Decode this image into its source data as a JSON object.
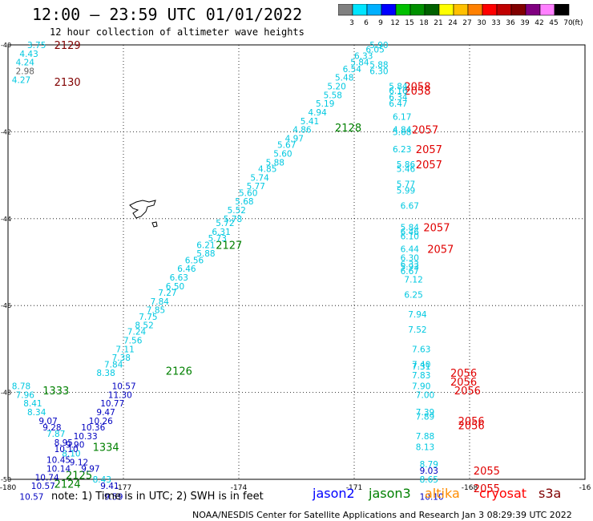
{
  "title": "12:00 — 23:59 UTC 01/01/2022",
  "subtitle": "12 hour collection of altimeter wave heights",
  "colorbar": {
    "unit": "(ft)",
    "ticks": [
      "3",
      "6",
      "9",
      "12",
      "15",
      "18",
      "21",
      "24",
      "27",
      "30",
      "33",
      "36",
      "39",
      "42",
      "45",
      "70"
    ],
    "colors": [
      "#808080",
      "#00e5ff",
      "#00b0ff",
      "#0000ff",
      "#00c000",
      "#009000",
      "#006000",
      "#ffff00",
      "#ffc000",
      "#ff8000",
      "#ff0000",
      "#c00000",
      "#800000",
      "#800080",
      "#ff80ff",
      "#000000"
    ]
  },
  "axes": {
    "x_labels": [
      "-180",
      "-177",
      "-174",
      "-171",
      "-168",
      "-16"
    ],
    "y_labels": [
      "-40",
      "-42",
      "-44",
      "-46",
      "-48",
      "-50"
    ]
  },
  "note": "note: 1) Time is in UTC; 2) SWH is in feet",
  "legend": [
    {
      "name": "jason2",
      "color": "#0000ff"
    },
    {
      "name": "jason3",
      "color": "#008000"
    },
    {
      "name": "altika",
      "color": "#ff8c00"
    },
    {
      "name": "cryosat",
      "color": "#ff0000"
    },
    {
      "name": "s3a",
      "color": "#800000"
    }
  ],
  "footer": "NOAA/NESDIS Center for Satellite Applications and Research   Jan  3 08:29:39 UTC 2022",
  "colors": {
    "cyan": "#00c8e0",
    "blue": "#0000c0",
    "green": "#008000",
    "red": "#e00000",
    "maroon": "#800000",
    "grey": "#606060"
  },
  "chart_data": {
    "type": "table",
    "tracks": [
      {
        "color": "maroon",
        "time_labels": [
          {
            "text": "2129",
            "x": -178.8,
            "y": -40.0
          },
          {
            "text": "2130",
            "x": -178.8,
            "y": -40.85
          }
        ]
      },
      {
        "color": "red",
        "time_labels": [
          {
            "text": "2058",
            "x": -169.7,
            "y": -40.95
          },
          {
            "text": "2058",
            "x": -169.7,
            "y": -41.05
          },
          {
            "text": "2057",
            "x": -169.5,
            "y": -41.95
          },
          {
            "text": "2057",
            "x": -169.4,
            "y": -42.4
          },
          {
            "text": "2057",
            "x": -169.4,
            "y": -42.75
          },
          {
            "text": "2057",
            "x": -169.2,
            "y": -44.2
          },
          {
            "text": "2057",
            "x": -169.1,
            "y": -44.7
          },
          {
            "text": "2056",
            "x": -168.5,
            "y": -47.55
          },
          {
            "text": "2056",
            "x": -168.5,
            "y": -47.75
          },
          {
            "text": "2056",
            "x": -168.4,
            "y": -47.95
          },
          {
            "text": "2056",
            "x": -168.3,
            "y": -48.65
          },
          {
            "text": "2056",
            "x": -168.3,
            "y": -48.75
          },
          {
            "text": "2055",
            "x": -167.9,
            "y": -49.8
          },
          {
            "text": "2055",
            "x": -167.9,
            "y": -50.2
          }
        ]
      },
      {
        "color": "green",
        "time_labels": [
          {
            "text": "2128",
            "x": -171.5,
            "y": -41.9
          },
          {
            "text": "2127",
            "x": -174.6,
            "y": -44.6
          },
          {
            "text": "2126",
            "x": -175.9,
            "y": -47.5
          },
          {
            "text": "1333",
            "x": -179.1,
            "y": -47.95
          },
          {
            "text": "1334",
            "x": -177.8,
            "y": -49.25
          },
          {
            "text": "2125",
            "x": -178.5,
            "y": -49.9
          },
          {
            "text": "2124",
            "x": -178.8,
            "y": -50.1
          }
        ]
      },
      {
        "color": "cyan",
        "values": [
          {
            "v": "3.75",
            "x": -179.5,
            "y": -40.0
          },
          {
            "v": "4.43",
            "x": -179.7,
            "y": -40.2
          },
          {
            "v": "4.24",
            "x": -179.8,
            "y": -40.4
          },
          {
            "v": "4.27",
            "x": -179.9,
            "y": -40.8
          },
          {
            "v": "5.90",
            "x": -170.6,
            "y": -40.0
          },
          {
            "v": "6.05",
            "x": -170.7,
            "y": -40.1
          },
          {
            "v": "6.33",
            "x": -171.0,
            "y": -40.25
          },
          {
            "v": "5.84",
            "x": -171.1,
            "y": -40.4
          },
          {
            "v": "5.88",
            "x": -170.6,
            "y": -40.45
          },
          {
            "v": "6.54",
            "x": -171.3,
            "y": -40.55
          },
          {
            "v": "6.30",
            "x": -170.6,
            "y": -40.6
          },
          {
            "v": "5.48",
            "x": -171.5,
            "y": -40.75
          },
          {
            "v": "5.20",
            "x": -171.7,
            "y": -40.95
          },
          {
            "v": "5.58",
            "x": -171.8,
            "y": -41.15
          },
          {
            "v": "5.19",
            "x": -172.0,
            "y": -41.35
          },
          {
            "v": "4.94",
            "x": -172.2,
            "y": -41.55
          },
          {
            "v": "5.41",
            "x": -172.4,
            "y": -41.75
          },
          {
            "v": "4.86",
            "x": -172.6,
            "y": -41.95
          },
          {
            "v": "4.97",
            "x": -172.8,
            "y": -42.15
          },
          {
            "v": "5.67",
            "x": -173.0,
            "y": -42.3
          },
          {
            "v": "5.60",
            "x": -173.1,
            "y": -42.5
          },
          {
            "v": "5.88",
            "x": -173.3,
            "y": -42.7
          },
          {
            "v": "4.85",
            "x": -173.5,
            "y": -42.85
          },
          {
            "v": "5.74",
            "x": -173.7,
            "y": -43.05
          },
          {
            "v": "5.77",
            "x": -173.8,
            "y": -43.25
          },
          {
            "v": "5.60",
            "x": -174.0,
            "y": -43.4
          },
          {
            "v": "5.68",
            "x": -174.1,
            "y": -43.6
          },
          {
            "v": "5.52",
            "x": -174.3,
            "y": -43.8
          },
          {
            "v": "5.78",
            "x": -174.4,
            "y": -44.0
          },
          {
            "v": "5.72",
            "x": -174.6,
            "y": -44.1
          },
          {
            "v": "6.31",
            "x": -174.7,
            "y": -44.3
          },
          {
            "v": "5.73",
            "x": -174.8,
            "y": -44.45
          },
          {
            "v": "6.21",
            "x": -175.1,
            "y": -44.6
          },
          {
            "v": "5.88",
            "x": -175.1,
            "y": -44.8
          },
          {
            "v": "6.56",
            "x": -175.4,
            "y": -44.95
          },
          {
            "v": "6.46",
            "x": -175.6,
            "y": -45.15
          },
          {
            "v": "6.63",
            "x": -175.8,
            "y": -45.35
          },
          {
            "v": "6.50",
            "x": -175.9,
            "y": -45.55
          },
          {
            "v": "7.27",
            "x": -176.1,
            "y": -45.7
          },
          {
            "v": "7.84",
            "x": -176.3,
            "y": -45.9
          },
          {
            "v": "7.85",
            "x": -176.4,
            "y": -46.1
          },
          {
            "v": "7.75",
            "x": -176.6,
            "y": -46.25
          },
          {
            "v": "8.52",
            "x": -176.7,
            "y": -46.45
          },
          {
            "v": "7.24",
            "x": -176.9,
            "y": -46.6
          },
          {
            "v": "7.56",
            "x": -177.0,
            "y": -46.8
          },
          {
            "v": "7.11",
            "x": -177.2,
            "y": -47.0
          },
          {
            "v": "7.38",
            "x": -177.3,
            "y": -47.2
          },
          {
            "v": "7.84",
            "x": -177.5,
            "y": -47.35
          },
          {
            "v": "8.38",
            "x": -177.7,
            "y": -47.55
          },
          {
            "v": "5.84",
            "x": -170.1,
            "y": -40.95
          },
          {
            "v": "6.16",
            "x": -170.1,
            "y": -41.05
          },
          {
            "v": "6.34",
            "x": -170.1,
            "y": -41.2
          },
          {
            "v": "6.47",
            "x": -170.1,
            "y": -41.35
          },
          {
            "v": "6.17",
            "x": -170.0,
            "y": -41.65
          },
          {
            "v": "4.84",
            "x": -170.0,
            "y": -41.95
          },
          {
            "v": "5.68",
            "x": -170.0,
            "y": -42.0
          },
          {
            "v": "6.23",
            "x": -170.0,
            "y": -42.4
          },
          {
            "v": "5.86",
            "x": -169.9,
            "y": -42.75
          },
          {
            "v": "5.46",
            "x": -169.9,
            "y": -42.85
          },
          {
            "v": "5.77",
            "x": -169.9,
            "y": -43.2
          },
          {
            "v": "5.99",
            "x": -169.9,
            "y": -43.35
          },
          {
            "v": "6.67",
            "x": -169.8,
            "y": -43.7
          },
          {
            "v": "5.84",
            "x": -169.8,
            "y": -44.2
          },
          {
            "v": "6.46",
            "x": -169.8,
            "y": -44.3
          },
          {
            "v": "6.10",
            "x": -169.8,
            "y": -44.4
          },
          {
            "v": "6.44",
            "x": -169.8,
            "y": -44.7
          },
          {
            "v": "6.30",
            "x": -169.8,
            "y": -44.9
          },
          {
            "v": "6.33",
            "x": -169.8,
            "y": -45.05
          },
          {
            "v": "5.93",
            "x": -169.8,
            "y": -45.1
          },
          {
            "v": "6.67",
            "x": -169.8,
            "y": -45.2
          },
          {
            "v": "7.12",
            "x": -169.7,
            "y": -45.4
          },
          {
            "v": "6.25",
            "x": -169.7,
            "y": -45.75
          },
          {
            "v": "7.94",
            "x": -169.6,
            "y": -46.2
          },
          {
            "v": "7.52",
            "x": -169.6,
            "y": -46.55
          },
          {
            "v": "7.63",
            "x": -169.5,
            "y": -47.0
          },
          {
            "v": "7.40",
            "x": -169.5,
            "y": -47.35
          },
          {
            "v": "7.31",
            "x": -169.5,
            "y": -47.4
          },
          {
            "v": "7.83",
            "x": -169.5,
            "y": -47.6
          },
          {
            "v": "7.90",
            "x": -169.5,
            "y": -47.85
          },
          {
            "v": "7.00",
            "x": -169.4,
            "y": -48.05
          },
          {
            "v": "7.39",
            "x": -169.4,
            "y": -48.45
          },
          {
            "v": "7.89",
            "x": -169.4,
            "y": -48.55
          },
          {
            "v": "7.88",
            "x": -169.4,
            "y": -49.0
          },
          {
            "v": "8.13",
            "x": -169.4,
            "y": -49.25
          },
          {
            "v": "8.79",
            "x": -169.3,
            "y": -49.65
          },
          {
            "v": "8.65",
            "x": -169.3,
            "y": -50.0
          },
          {
            "v": "8.78",
            "x": -179.9,
            "y": -47.85
          },
          {
            "v": "7.96",
            "x": -179.8,
            "y": -48.05
          },
          {
            "v": "8.41",
            "x": -179.6,
            "y": -48.25
          },
          {
            "v": "8.34",
            "x": -179.5,
            "y": -48.45
          },
          {
            "v": "7.87",
            "x": -179.0,
            "y": -48.95
          },
          {
            "v": "8.10",
            "x": -178.6,
            "y": -49.4
          },
          {
            "v": "8.43",
            "x": -177.8,
            "y": -50.0
          }
        ]
      },
      {
        "color": "grey",
        "values": [
          {
            "v": "2.98",
            "x": -179.8,
            "y": -40.6
          }
        ]
      },
      {
        "color": "blue",
        "values": [
          {
            "v": "10.57",
            "x": -177.3,
            "y": -47.85
          },
          {
            "v": "11.30",
            "x": -177.4,
            "y": -48.05
          },
          {
            "v": "10.77",
            "x": -177.6,
            "y": -48.25
          },
          {
            "v": "9.47",
            "x": -177.7,
            "y": -48.45
          },
          {
            "v": "10.26",
            "x": -177.9,
            "y": -48.65
          },
          {
            "v": "10.36",
            "x": -178.1,
            "y": -48.8
          },
          {
            "v": "10.33",
            "x": -178.3,
            "y": -49.0
          },
          {
            "v": "9.07",
            "x": -179.2,
            "y": -48.65
          },
          {
            "v": "9.28",
            "x": -179.1,
            "y": -48.8
          },
          {
            "v": "8.95",
            "x": -178.8,
            "y": -49.15
          },
          {
            "v": "9.90",
            "x": -178.5,
            "y": -49.2
          },
          {
            "v": "10.10",
            "x": -178.8,
            "y": -49.3
          },
          {
            "v": "9.12",
            "x": -178.4,
            "y": -49.6
          },
          {
            "v": "10.45",
            "x": -179.0,
            "y": -49.55
          },
          {
            "v": "10.14",
            "x": -179.0,
            "y": -49.75
          },
          {
            "v": "9.97",
            "x": -178.1,
            "y": -49.75
          },
          {
            "v": "10.74",
            "x": -179.3,
            "y": -49.95
          },
          {
            "v": "10.57",
            "x": -179.4,
            "y": -50.15
          },
          {
            "v": "9.41",
            "x": -177.6,
            "y": -50.15
          },
          {
            "v": "10.57",
            "x": -179.7,
            "y": -50.4
          },
          {
            "v": "9.59",
            "x": -177.5,
            "y": -50.4
          },
          {
            "v": "9.03",
            "x": -169.3,
            "y": -49.8
          },
          {
            "v": "10.10",
            "x": -169.3,
            "y": -50.4
          }
        ]
      }
    ]
  }
}
